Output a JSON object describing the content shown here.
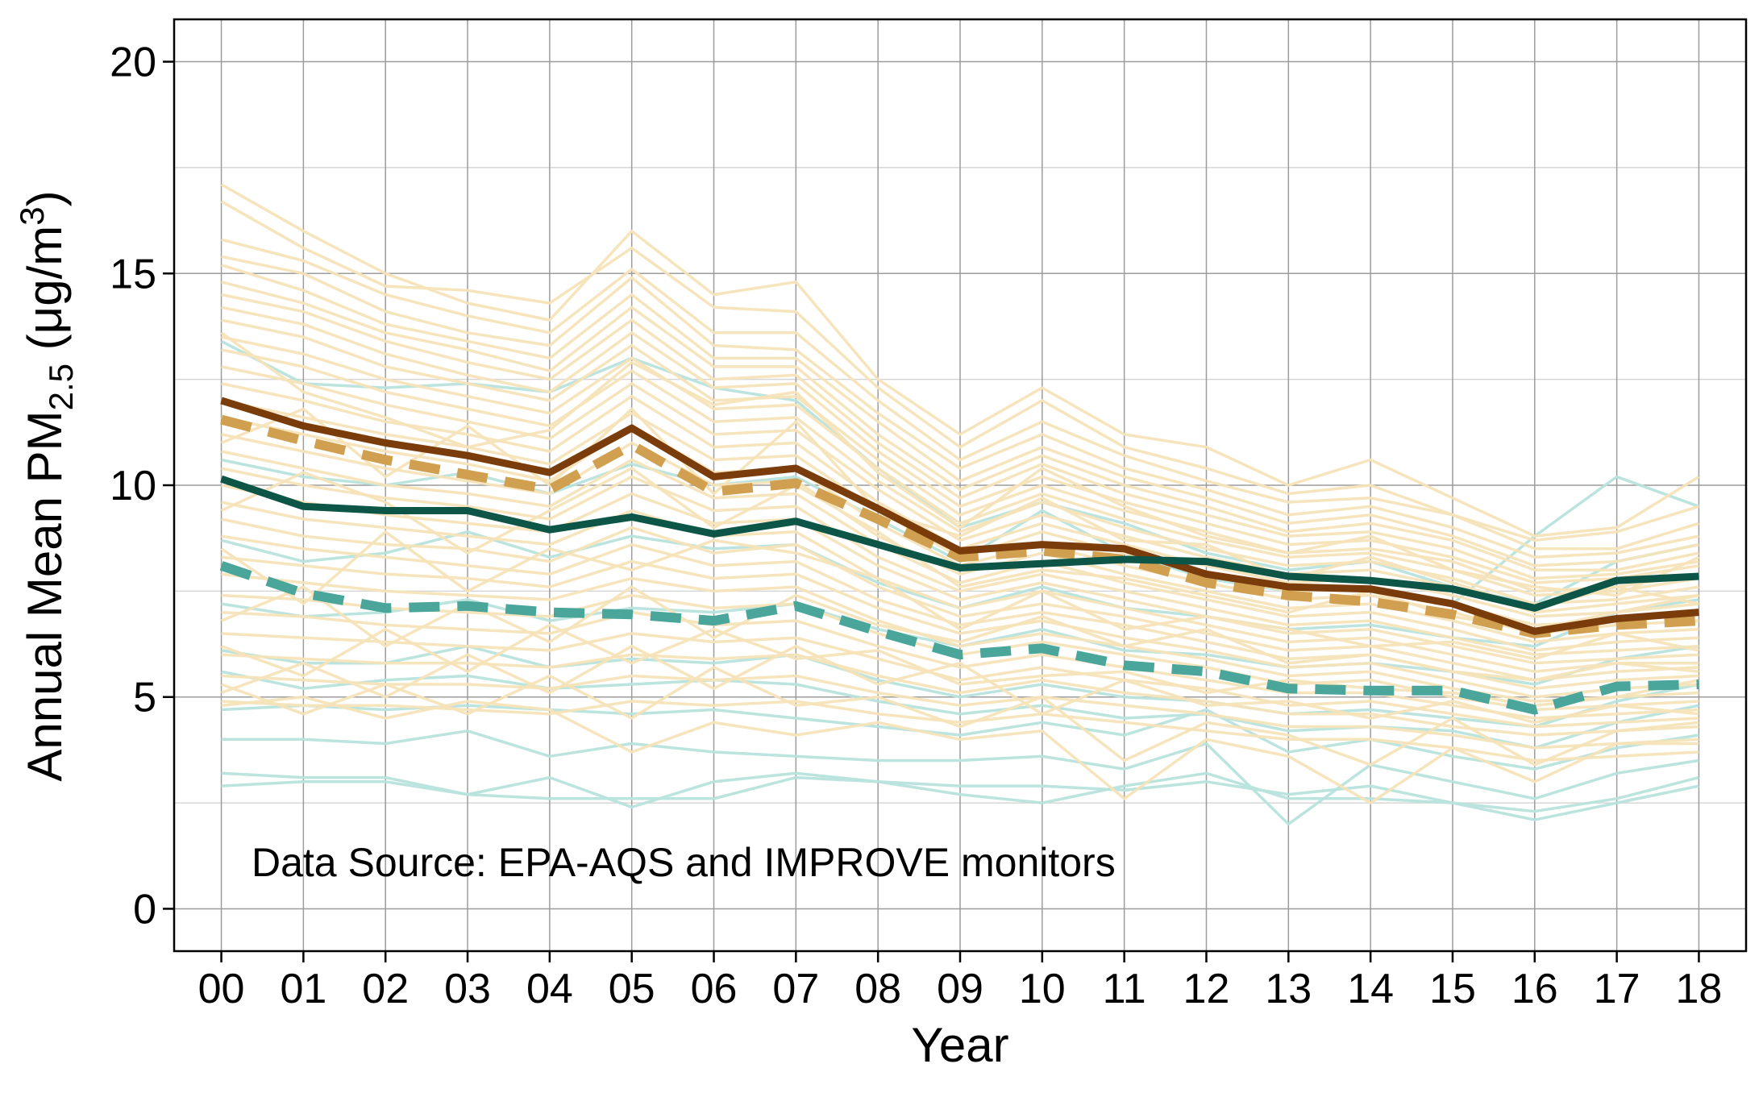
{
  "chart_data": {
    "type": "line",
    "xlabel": "Year",
    "ylabel": {
      "prefix": "Annual Mean PM",
      "subscript": "2.5",
      "unit_open": " (",
      "unit_mu": "μ",
      "unit_body": "g/m",
      "unit_sup": "3",
      "unit_close": ")"
    },
    "annotation": "Data Source: EPA-AQS and IMPROVE monitors",
    "categories": [
      "00",
      "01",
      "02",
      "03",
      "04",
      "05",
      "06",
      "07",
      "08",
      "09",
      "10",
      "11",
      "12",
      "13",
      "14",
      "15",
      "16",
      "17",
      "18"
    ],
    "ylim": [
      -1,
      21
    ],
    "yticks": [
      0,
      5,
      10,
      15,
      20
    ],
    "grid": true,
    "legend": "none",
    "colors": {
      "background_light": "#f5e3b8",
      "background_teal": "#b8e3dc",
      "series_brown": "#7b3c0b",
      "series_tan_dashed": "#d0a050",
      "series_darkgreen": "#0c5547",
      "series_teal_dashed": "#4aa59a",
      "grid_major": "#9c9c9c",
      "grid_minor": "#d6d6d6",
      "frame": "#000000"
    },
    "series": [
      {
        "style": "solid",
        "color": "#7b3c0b",
        "width": 9,
        "values": [
          12.0,
          11.4,
          11.0,
          10.7,
          10.3,
          11.35,
          10.2,
          10.4,
          9.45,
          8.45,
          8.6,
          8.5,
          7.9,
          7.6,
          7.55,
          7.2,
          6.55,
          6.85,
          7.0
        ]
      },
      {
        "style": "dashed",
        "color": "#d0a050",
        "width": 12,
        "values": [
          11.55,
          11.05,
          10.6,
          10.25,
          9.9,
          10.95,
          9.85,
          10.05,
          9.2,
          8.3,
          8.45,
          8.25,
          7.7,
          7.4,
          7.25,
          6.95,
          6.5,
          6.7,
          6.8
        ]
      },
      {
        "style": "solid",
        "color": "#0c5547",
        "width": 9,
        "values": [
          10.15,
          9.5,
          9.4,
          9.4,
          8.95,
          9.25,
          8.85,
          9.15,
          8.6,
          8.05,
          8.15,
          8.25,
          8.2,
          7.85,
          7.75,
          7.55,
          7.1,
          7.75,
          7.85
        ]
      },
      {
        "style": "dashed",
        "color": "#4aa59a",
        "width": 12,
        "values": [
          8.1,
          7.45,
          7.1,
          7.15,
          7.0,
          6.95,
          6.8,
          7.15,
          6.55,
          6.0,
          6.15,
          5.75,
          5.6,
          5.2,
          5.15,
          5.15,
          4.7,
          5.25,
          5.3
        ]
      }
    ],
    "background_series_light": [
      [
        17.1,
        16.0,
        15.0,
        14.3,
        13.9,
        16.0,
        14.5,
        14.8,
        12.5,
        11.2,
        12.3,
        11.2,
        10.9,
        10.0,
        10.6,
        9.7,
        8.8,
        9.0,
        10.2
      ],
      [
        16.7,
        15.6,
        14.7,
        14.6,
        14.3,
        15.6,
        14.2,
        14.1,
        12.3,
        10.9,
        12.0,
        10.9,
        10.4,
        9.8,
        10.0,
        9.3,
        8.7,
        8.9,
        9.5
      ],
      [
        15.8,
        15.3,
        14.5,
        14.0,
        13.6,
        15.1,
        13.6,
        13.6,
        12.0,
        10.6,
        11.5,
        10.7,
        10.1,
        9.6,
        9.7,
        9.3,
        8.5,
        8.5,
        9.1
      ],
      [
        15.4,
        15.0,
        14.1,
        13.6,
        13.3,
        14.9,
        13.3,
        13.2,
        11.7,
        10.4,
        11.2,
        10.4,
        9.9,
        9.3,
        9.5,
        9.0,
        8.3,
        8.4,
        8.8
      ],
      [
        15.2,
        14.6,
        13.8,
        13.4,
        13.0,
        14.5,
        13.0,
        13.0,
        11.5,
        10.1,
        10.9,
        10.2,
        9.7,
        9.1,
        9.3,
        8.8,
        8.1,
        8.2,
        8.6
      ],
      [
        14.8,
        14.3,
        13.6,
        13.2,
        12.7,
        14.2,
        12.8,
        12.8,
        11.2,
        9.9,
        10.7,
        10.0,
        9.5,
        8.9,
        9.1,
        8.7,
        8.0,
        8.0,
        8.4
      ],
      [
        14.5,
        14.1,
        13.4,
        12.9,
        12.5,
        13.9,
        12.5,
        12.6,
        11.0,
        9.7,
        10.5,
        9.8,
        9.3,
        8.8,
        8.9,
        8.5,
        7.8,
        7.9,
        8.2
      ],
      [
        14.2,
        13.8,
        13.1,
        12.6,
        12.2,
        13.6,
        12.3,
        12.4,
        10.8,
        9.5,
        10.2,
        9.6,
        9.1,
        8.6,
        8.7,
        8.3,
        7.7,
        7.8,
        8.1
      ],
      [
        13.9,
        13.5,
        12.8,
        12.4,
        12.0,
        13.3,
        12.0,
        12.1,
        10.6,
        9.3,
        10.0,
        9.4,
        8.9,
        8.4,
        8.5,
        8.2,
        7.5,
        7.6,
        7.9
      ],
      [
        13.5,
        13.1,
        12.5,
        12.1,
        11.7,
        13.0,
        11.8,
        11.9,
        10.4,
        9.1,
        9.8,
        9.2,
        8.7,
        8.3,
        8.4,
        8.0,
        7.4,
        7.5,
        7.8
      ],
      [
        13.2,
        12.8,
        12.2,
        11.8,
        11.4,
        12.7,
        11.5,
        11.6,
        10.1,
        8.9,
        9.6,
        9.0,
        8.5,
        8.1,
        8.2,
        7.8,
        7.2,
        7.3,
        7.6
      ],
      [
        12.8,
        12.4,
        11.9,
        11.5,
        11.1,
        12.4,
        11.2,
        11.3,
        9.9,
        8.7,
        9.3,
        8.8,
        8.3,
        7.9,
        8.0,
        7.6,
        7.0,
        7.2,
        7.4
      ],
      [
        12.4,
        12.0,
        11.5,
        11.2,
        10.8,
        12.1,
        10.9,
        11.0,
        9.6,
        8.5,
        9.1,
        8.6,
        8.1,
        7.7,
        7.8,
        7.4,
        6.9,
        7.0,
        7.2
      ],
      [
        12.0,
        11.6,
        11.2,
        10.9,
        10.5,
        11.7,
        10.6,
        10.7,
        9.4,
        8.3,
        8.9,
        8.4,
        7.9,
        7.5,
        7.6,
        7.2,
        6.7,
        6.8,
        7.0
      ],
      [
        11.6,
        11.2,
        10.8,
        10.5,
        10.1,
        11.4,
        10.3,
        10.4,
        9.1,
        8.1,
        8.6,
        8.1,
        7.7,
        7.3,
        7.4,
        7.0,
        6.5,
        6.7,
        6.8
      ],
      [
        11.2,
        10.8,
        10.4,
        10.1,
        9.8,
        11.0,
        10.0,
        10.1,
        8.8,
        7.9,
        8.4,
        7.9,
        7.5,
        7.1,
        7.2,
        6.8,
        6.3,
        6.5,
        6.6
      ],
      [
        10.8,
        10.4,
        10.0,
        9.8,
        9.5,
        10.6,
        9.7,
        9.8,
        8.6,
        7.7,
        8.2,
        7.7,
        7.3,
        6.9,
        7.0,
        6.6,
        6.1,
        6.3,
        6.4
      ],
      [
        10.4,
        10.0,
        9.7,
        9.5,
        9.2,
        10.2,
        9.4,
        9.5,
        8.3,
        7.5,
        7.9,
        7.5,
        7.1,
        6.7,
        6.8,
        6.4,
        6.0,
        6.1,
        6.2
      ],
      [
        10.0,
        9.6,
        9.3,
        9.1,
        8.9,
        9.8,
        9.1,
        9.2,
        8.1,
        7.3,
        7.7,
        7.3,
        6.9,
        6.5,
        6.6,
        6.2,
        5.8,
        5.9,
        6.0
      ],
      [
        9.6,
        9.2,
        9.0,
        8.8,
        8.6,
        9.4,
        8.8,
        8.9,
        7.8,
        7.1,
        7.5,
        7.1,
        6.7,
        6.3,
        6.4,
        6.0,
        5.6,
        5.8,
        5.8
      ],
      [
        9.2,
        8.8,
        8.6,
        8.5,
        8.2,
        9.0,
        8.4,
        8.6,
        7.6,
        6.9,
        7.2,
        6.9,
        6.5,
        6.1,
        6.2,
        5.8,
        5.4,
        5.6,
        5.7
      ],
      [
        8.8,
        8.5,
        8.3,
        8.1,
        7.9,
        8.6,
        8.1,
        8.2,
        7.3,
        6.7,
        7.0,
        6.7,
        6.3,
        5.9,
        6.0,
        5.6,
        5.2,
        5.4,
        5.5
      ],
      [
        8.3,
        8.1,
        7.9,
        7.8,
        7.6,
        8.2,
        7.8,
        7.9,
        7.1,
        6.5,
        6.8,
        6.4,
        6.1,
        5.7,
        5.8,
        5.4,
        5.0,
        5.2,
        5.3
      ],
      [
        7.9,
        7.7,
        7.5,
        7.4,
        7.3,
        7.8,
        7.5,
        7.6,
        6.8,
        6.2,
        6.5,
        6.2,
        5.9,
        5.5,
        5.6,
        5.2,
        4.9,
        5.0,
        5.1
      ],
      [
        7.4,
        7.3,
        7.1,
        7.0,
        6.9,
        7.4,
        7.1,
        7.2,
        6.5,
        6.0,
        6.3,
        6.0,
        5.7,
        5.3,
        5.4,
        5.0,
        4.7,
        4.8,
        4.9
      ],
      [
        7.0,
        6.9,
        6.7,
        6.6,
        6.5,
        7.0,
        6.7,
        6.8,
        6.2,
        5.7,
        6.0,
        5.7,
        5.4,
        5.1,
        5.1,
        4.8,
        4.5,
        4.6,
        4.7
      ],
      [
        6.5,
        6.4,
        6.3,
        6.2,
        6.1,
        6.5,
        6.3,
        6.4,
        5.9,
        5.4,
        5.7,
        5.4,
        5.2,
        4.8,
        4.9,
        4.6,
        4.3,
        4.4,
        4.5
      ],
      [
        6.0,
        5.9,
        5.8,
        5.8,
        5.7,
        6.0,
        5.9,
        6.0,
        5.5,
        5.1,
        5.4,
        5.1,
        4.9,
        4.6,
        4.6,
        4.3,
        4.1,
        4.2,
        4.3
      ],
      [
        5.5,
        5.4,
        5.3,
        5.3,
        5.2,
        5.5,
        5.4,
        5.5,
        5.1,
        4.8,
        5.0,
        4.8,
        4.6,
        4.3,
        4.3,
        4.1,
        3.8,
        3.9,
        4.0
      ],
      [
        4.9,
        4.8,
        4.8,
        4.7,
        4.6,
        4.9,
        4.8,
        4.9,
        4.6,
        4.4,
        4.6,
        4.4,
        4.2,
        4.0,
        4.0,
        3.8,
        3.5,
        3.6,
        3.7
      ],
      [
        13.6,
        12.2,
        11.6,
        10.9,
        11.3,
        12.9,
        11.9,
        12.2,
        10.3,
        9.0,
        10.4,
        9.5,
        8.8,
        8.4,
        8.8,
        8.0,
        7.6,
        7.4,
        8.3
      ],
      [
        11.0,
        11.8,
        10.2,
        11.4,
        10.0,
        11.8,
        9.8,
        11.5,
        9.4,
        8.8,
        9.7,
        8.7,
        8.6,
        7.8,
        8.3,
        7.7,
        7.1,
        7.6,
        7.2
      ],
      [
        9.4,
        10.3,
        9.6,
        8.4,
        9.4,
        10.4,
        9.0,
        10.0,
        8.9,
        7.6,
        8.0,
        7.8,
        7.4,
        7.0,
        7.5,
        6.9,
        6.6,
        7.0,
        7.4
      ],
      [
        8.5,
        7.2,
        8.9,
        7.5,
        8.5,
        8.0,
        8.7,
        8.4,
        7.8,
        6.6,
        7.5,
        6.6,
        6.9,
        6.6,
        6.2,
        6.3,
        5.9,
        6.5,
        6.1
      ],
      [
        6.8,
        7.6,
        6.2,
        7.2,
        6.3,
        7.6,
        6.4,
        7.4,
        6.7,
        6.3,
        6.9,
        6.2,
        6.6,
        5.8,
        6.0,
        5.6,
        5.4,
        5.8,
        5.6
      ],
      [
        6.2,
        5.5,
        6.6,
        5.6,
        6.7,
        5.8,
        6.6,
        5.9,
        6.1,
        5.3,
        5.5,
        5.6,
        5.1,
        5.4,
        5.2,
        5.1,
        4.8,
        5.0,
        5.4
      ],
      [
        5.1,
        5.8,
        5.0,
        6.0,
        5.1,
        6.2,
        5.2,
        6.2,
        5.3,
        5.8,
        4.6,
        5.4,
        4.8,
        4.9,
        4.5,
        4.9,
        4.4,
        4.8,
        4.6
      ],
      [
        5.3,
        4.6,
        5.3,
        4.6,
        5.5,
        4.5,
        5.7,
        4.8,
        5.0,
        4.3,
        5.0,
        3.5,
        4.4,
        4.1,
        3.4,
        4.5,
        3.4,
        4.2,
        4.4
      ],
      [
        4.8,
        5.0,
        4.5,
        4.9,
        4.7,
        3.7,
        4.4,
        4.1,
        4.4,
        4.0,
        4.2,
        2.6,
        4.0,
        3.6,
        2.5,
        3.8,
        3.0,
        3.9,
        3.9
      ]
    ],
    "background_series_teal": [
      [
        13.4,
        12.4,
        12.3,
        12.4,
        12.2,
        13.0,
        12.3,
        12.0,
        10.4,
        9.0,
        9.6,
        9.1,
        8.4,
        8.0,
        8.2,
        7.6,
        7.2,
        8.2,
        8.6
      ],
      [
        10.6,
        10.2,
        10.0,
        10.3,
        9.8,
        10.5,
        10.0,
        10.2,
        9.2,
        8.2,
        9.4,
        8.4,
        7.8,
        7.5,
        7.6,
        7.2,
        8.8,
        10.2,
        9.5
      ],
      [
        8.7,
        8.2,
        8.4,
        8.9,
        8.3,
        8.8,
        8.5,
        8.6,
        7.7,
        7.1,
        7.6,
        7.1,
        6.9,
        6.6,
        6.7,
        6.4,
        6.2,
        7.0,
        7.3
      ],
      [
        7.2,
        6.9,
        7.0,
        7.3,
        6.8,
        7.1,
        7.0,
        7.2,
        6.6,
        6.2,
        6.6,
        6.1,
        6.0,
        5.7,
        5.8,
        5.6,
        5.3,
        5.9,
        6.2
      ],
      [
        6.1,
        5.8,
        5.8,
        6.2,
        5.7,
        5.9,
        5.8,
        6.0,
        5.4,
        5.0,
        5.3,
        5.0,
        4.9,
        4.6,
        4.7,
        4.5,
        4.3,
        4.9,
        5.3
      ],
      [
        5.6,
        5.2,
        5.4,
        5.5,
        5.2,
        5.3,
        5.4,
        5.3,
        4.9,
        4.6,
        4.8,
        4.5,
        4.6,
        4.2,
        4.3,
        4.2,
        3.8,
        4.4,
        4.8
      ],
      [
        4.7,
        4.8,
        4.7,
        4.8,
        4.7,
        4.6,
        4.7,
        4.5,
        4.3,
        4.1,
        4.4,
        4.1,
        4.7,
        3.7,
        4.0,
        3.6,
        3.3,
        3.8,
        4.1
      ],
      [
        4.0,
        4.0,
        3.9,
        4.2,
        3.6,
        3.9,
        3.7,
        3.6,
        3.5,
        3.5,
        3.6,
        3.3,
        3.9,
        2.0,
        3.4,
        3.0,
        2.6,
        3.2,
        3.5
      ],
      [
        3.2,
        3.1,
        3.1,
        2.7,
        3.1,
        2.4,
        3.0,
        3.2,
        3.0,
        2.9,
        2.9,
        2.8,
        3.0,
        2.7,
        2.9,
        2.5,
        2.3,
        2.6,
        3.1
      ],
      [
        2.9,
        3.0,
        3.0,
        2.7,
        2.6,
        2.6,
        2.6,
        3.1,
        3.0,
        2.7,
        2.5,
        2.9,
        3.2,
        2.6,
        2.6,
        2.5,
        2.1,
        2.5,
        2.9
      ]
    ]
  }
}
